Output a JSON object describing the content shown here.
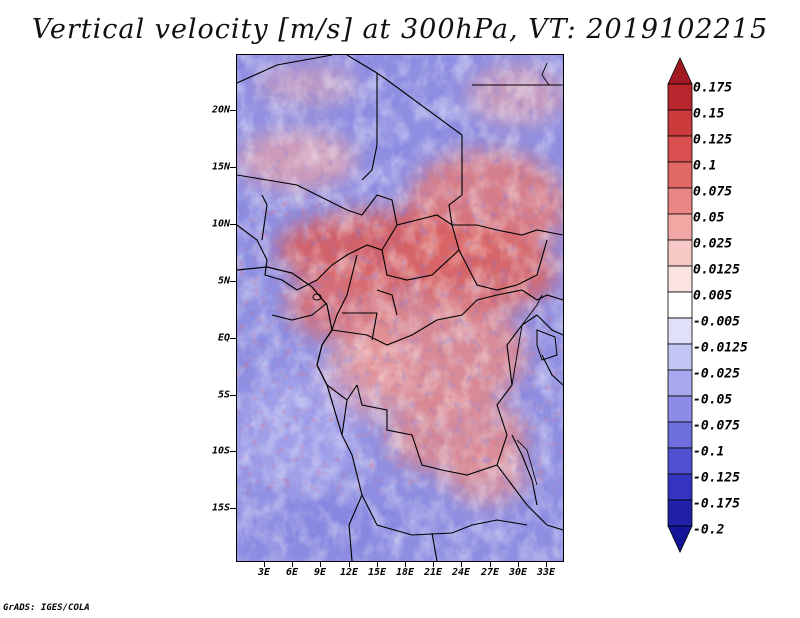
{
  "title": "Vertical velocity [m/s] at 300hPa, VT: 2019102215",
  "credit": "GrADS: IGES/COLA",
  "latitude_labels": [
    "20N",
    "15N",
    "10N",
    "5N",
    "EQ",
    "5S",
    "10S",
    "15S"
  ],
  "longitude_labels": [
    "3E",
    "6E",
    "9E",
    "12E",
    "15E",
    "18E",
    "21E",
    "24E",
    "27E",
    "30E",
    "33E"
  ],
  "colorbar": {
    "labels": [
      "0.175",
      "0.15",
      "0.125",
      "0.1",
      "0.075",
      "0.05",
      "0.025",
      "0.0125",
      "0.005",
      "-0.005",
      "-0.0125",
      "-0.025",
      "-0.05",
      "-0.075",
      "-0.1",
      "-0.125",
      "-0.175",
      "-0.2"
    ],
    "colors": [
      "#a01a24",
      "#b8262e",
      "#cc3b3b",
      "#d94f4f",
      "#e26a66",
      "#ea8784",
      "#f1a8a5",
      "#f6c8c6",
      "#fbe3e2",
      "#ffffff",
      "#e0e0fb",
      "#c4c4f4",
      "#a8a8ee",
      "#8c8ce6",
      "#6e6edc",
      "#5050d0",
      "#3434c0",
      "#2020a8",
      "#141496"
    ]
  },
  "map": {
    "region": "Central Africa",
    "lon_range": [
      0,
      35
    ],
    "lat_range": [
      -20,
      25
    ]
  }
}
